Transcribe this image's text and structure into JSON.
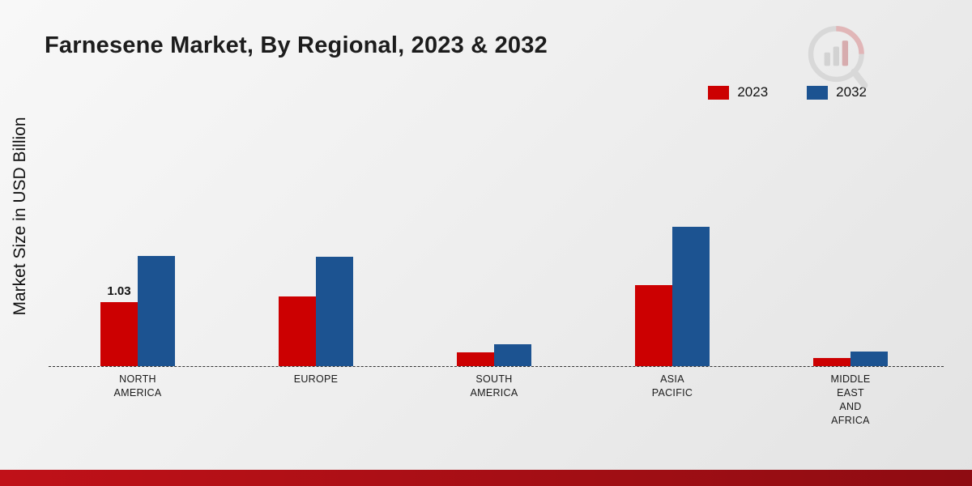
{
  "title": "Farnesene Market, By Regional, 2023 & 2032",
  "y_axis_label": "Market Size in USD Billion",
  "legend": {
    "items": [
      {
        "label": "2023",
        "color": "#cc0001"
      },
      {
        "label": "2032",
        "color": "#1c5391"
      }
    ]
  },
  "chart_data": {
    "type": "bar",
    "title": "Farnesene Market, By Regional, 2023 & 2032",
    "xlabel": "",
    "ylabel": "Market Size in USD Billion",
    "categories": [
      "NORTH\nAMERICA",
      "EUROPE",
      "SOUTH\nAMERICA",
      "ASIA\nPACIFIC",
      "MIDDLE\nEAST\nAND\nAFRICA"
    ],
    "series": [
      {
        "name": "2023",
        "color": "#cc0001",
        "values": [
          1.03,
          1.12,
          0.22,
          1.3,
          0.13
        ]
      },
      {
        "name": "2032",
        "color": "#1c5391",
        "values": [
          1.77,
          1.75,
          0.35,
          2.23,
          0.23
        ]
      }
    ],
    "ylim": [
      0,
      2.5
    ],
    "grid": false,
    "legend_position": "top-right",
    "baseline_style": "dashed",
    "bar_labels": [
      {
        "category_index": 0,
        "series": "2023",
        "text": "1.03"
      }
    ]
  },
  "watermark": {
    "name": "brand-logo-watermark"
  }
}
